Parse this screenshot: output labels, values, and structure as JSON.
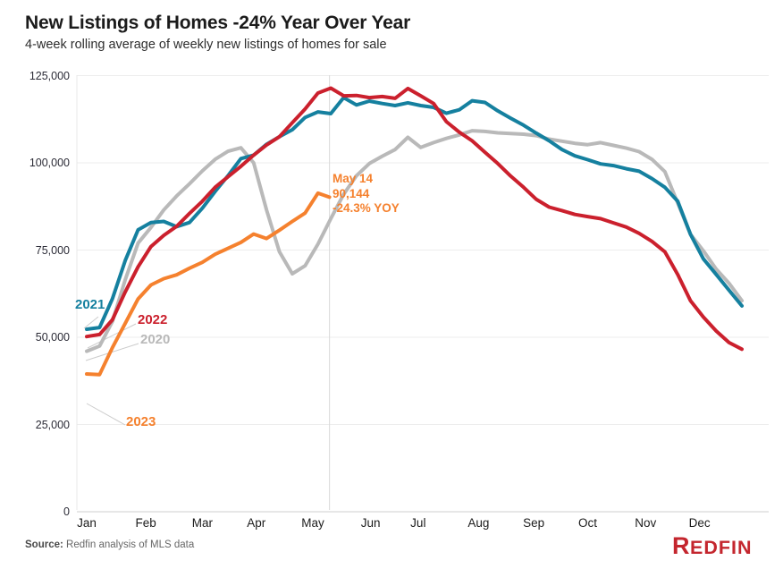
{
  "header": {
    "title": "New Listings of Homes -24% Year Over Year",
    "subtitle": "4-week rolling average of weekly new listings of homes for sale"
  },
  "annotation": {
    "date": "May 14",
    "value": "90,144",
    "yoy": "-24.3% YOY",
    "color": "#f5812e"
  },
  "axes": {
    "y_ticks": [
      {
        "label": "125,000",
        "value": 125000
      },
      {
        "label": "100,000",
        "value": 100000
      },
      {
        "label": "75,000",
        "value": 75000
      },
      {
        "label": "50,000",
        "value": 50000
      },
      {
        "label": "25,000",
        "value": 25000
      },
      {
        "label": "0",
        "value": 0
      }
    ],
    "x_ticks": [
      "Jan",
      "Feb",
      "Mar",
      "Apr",
      "May",
      "Jun",
      "Jul",
      "Aug",
      "Sep",
      "Oct",
      "Nov",
      "Dec"
    ]
  },
  "footer": {
    "source_label": "Source:",
    "source_text": " Redfin analysis of MLS data",
    "logo_first_letter": "R",
    "logo_rest": "EDFIN"
  },
  "chart_data": {
    "type": "line",
    "title": "New Listings of Homes -24% Year Over Year",
    "subtitle": "4-week rolling average of weekly new listings of homes for sale",
    "x_unit": "week of year",
    "categories": [
      "Jan",
      "Feb",
      "Mar",
      "Apr",
      "May",
      "Jun",
      "Jul",
      "Aug",
      "Sep",
      "Oct",
      "Nov",
      "Dec"
    ],
    "ylim": [
      0,
      125000
    ],
    "grid": "horizontal",
    "annotation_marker": {
      "series": "2023",
      "week": 18.9,
      "text": [
        "May 14",
        "90,144",
        "-24.3% YOY"
      ]
    },
    "series": [
      {
        "name": "2020",
        "color": "#b9b9b9",
        "values": [
          46000,
          47500,
          54500,
          66500,
          77000,
          81500,
          86500,
          90500,
          94000,
          97700,
          101000,
          103300,
          104300,
          100000,
          86500,
          74500,
          68200,
          70500,
          76700,
          84000,
          91000,
          96300,
          99800,
          101900,
          103800,
          107300,
          104400,
          105800,
          107000,
          108000,
          109200,
          109000,
          108600,
          108400,
          108200,
          107800,
          106800,
          106200,
          105600,
          105200,
          105800,
          105000,
          104200,
          103200,
          101000,
          97500,
          88500,
          79500,
          74800,
          69500,
          65500,
          60500
        ]
      },
      {
        "name": "2021",
        "color": "#15809f",
        "values": [
          52300,
          52800,
          61000,
          72000,
          80800,
          82900,
          83200,
          81700,
          82900,
          87000,
          91800,
          96300,
          101200,
          102200,
          105300,
          107500,
          109500,
          113000,
          114600,
          114100,
          118700,
          116600,
          117700,
          117000,
          116400,
          117200,
          116400,
          115900,
          114200,
          115200,
          117800,
          117300,
          114900,
          112800,
          110800,
          108500,
          106300,
          103800,
          102000,
          100900,
          99700,
          99200,
          98300,
          97600,
          95500,
          93000,
          89000,
          79500,
          72500,
          68000,
          63500,
          59000
        ]
      },
      {
        "name": "2022",
        "color": "#cb202d",
        "values": [
          50200,
          50800,
          55000,
          63000,
          70200,
          76000,
          79200,
          81800,
          85500,
          89000,
          93000,
          96000,
          99000,
          102200,
          105100,
          107500,
          111500,
          115400,
          120000,
          121400,
          119200,
          119300,
          118700,
          119000,
          118500,
          121300,
          119200,
          117000,
          111800,
          108800,
          106300,
          103000,
          99800,
          96200,
          93000,
          89500,
          87300,
          86300,
          85200,
          84600,
          84000,
          82800,
          81600,
          79800,
          77500,
          74500,
          68000,
          60500,
          55800,
          51800,
          48500,
          46600
        ]
      },
      {
        "name": "2023",
        "color": "#f5812e",
        "weeks": [
          0,
          1,
          2,
          3,
          4,
          5,
          6,
          7,
          8,
          9,
          10,
          11,
          12,
          13,
          14,
          15,
          16,
          17,
          18,
          18.9
        ],
        "values": [
          39500,
          39300,
          47000,
          54000,
          61000,
          65000,
          66800,
          67900,
          69800,
          71500,
          73800,
          75500,
          77200,
          79600,
          78300,
          80700,
          83200,
          85600,
          91300,
          90144
        ]
      }
    ]
  }
}
